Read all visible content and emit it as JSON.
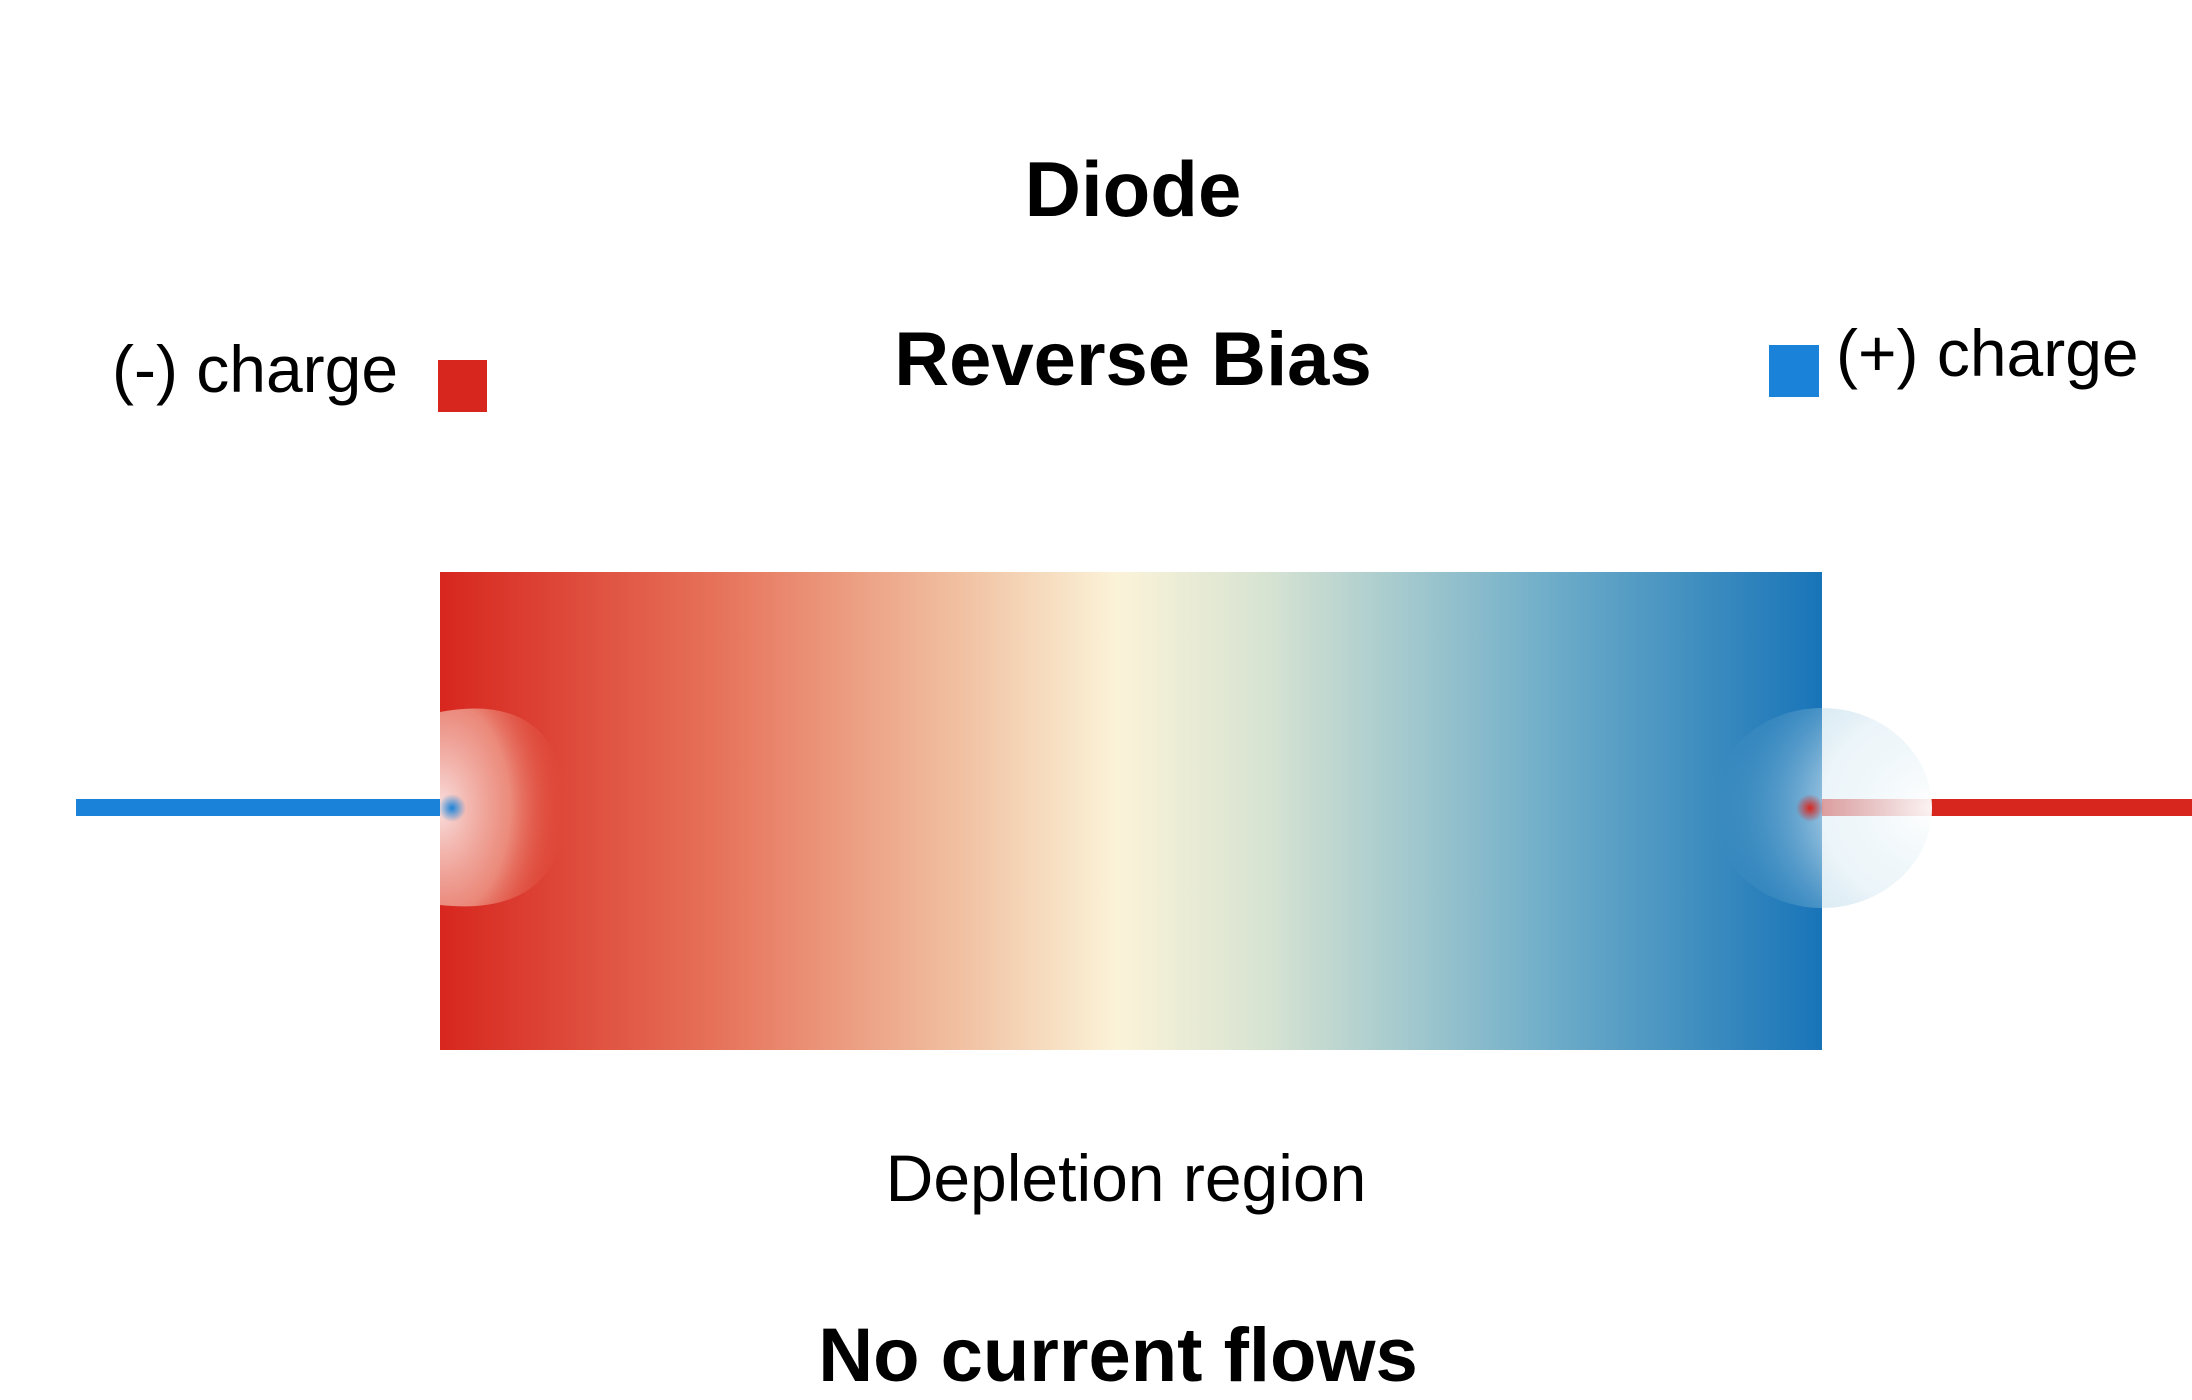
{
  "diagram": {
    "title": "Diode",
    "subtitle": "Reverse Bias",
    "legend": {
      "negative": {
        "label": "(-) charge",
        "color": "#d7261e"
      },
      "positive": {
        "label": "(+) charge",
        "color": "#1a82d8"
      }
    },
    "colors": {
      "n_side": "#d7261e",
      "depletion_center": "#fbf3d8",
      "p_side": "#1874b8",
      "left_lead": "#1a82d8",
      "right_lead": "#d7261e"
    },
    "region_label": "Depletion region",
    "status": "No current flows"
  }
}
